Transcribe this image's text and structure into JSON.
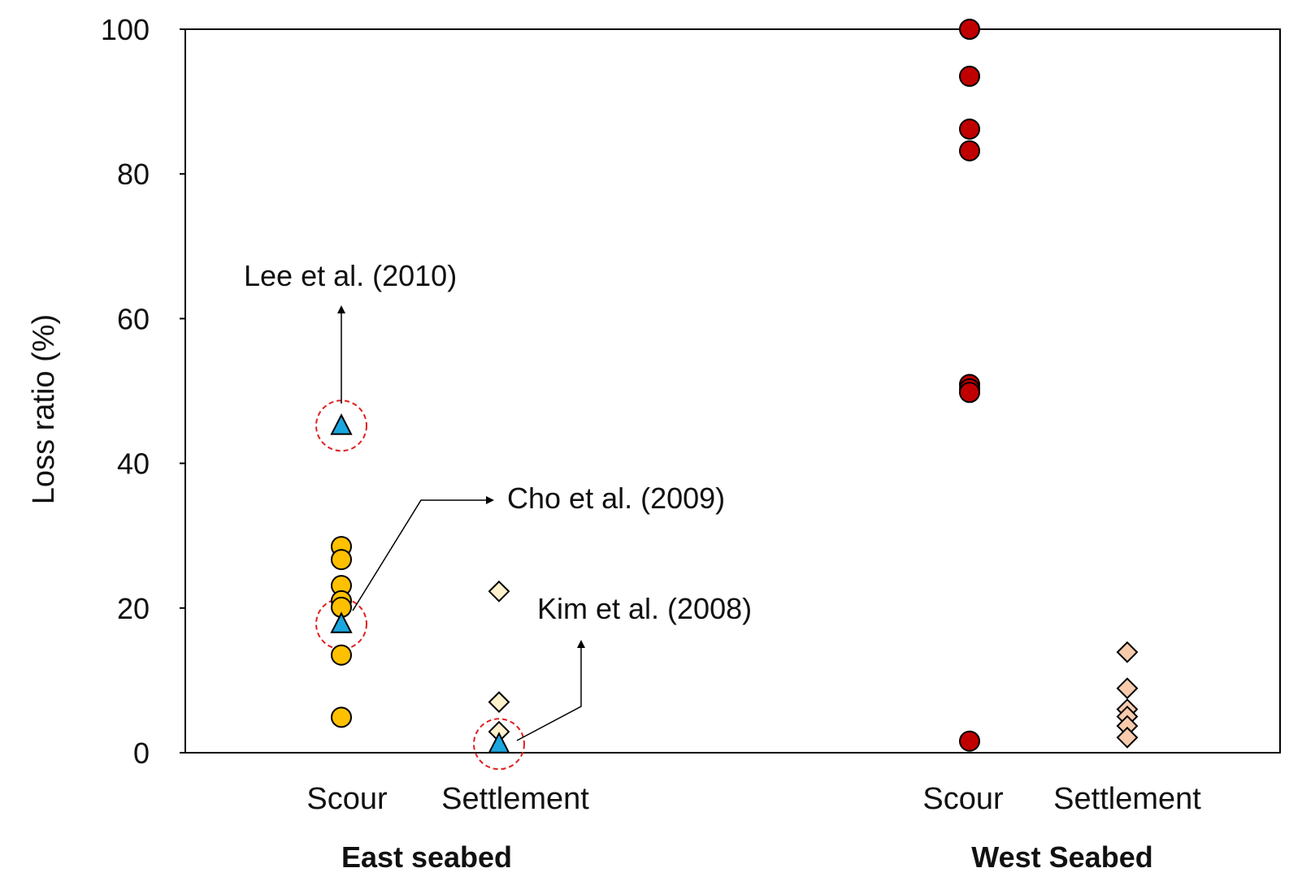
{
  "chart_data": {
    "type": "scatter",
    "ylabel": "Loss ratio (%)",
    "ylim": [
      0,
      100
    ],
    "yticks": [
      0,
      20,
      40,
      60,
      80,
      100
    ],
    "grid": false,
    "groups": [
      {
        "label": "East seabed",
        "categories": [
          "Scour",
          "Settlement"
        ]
      },
      {
        "label": "West Seabed",
        "categories": [
          "Scour",
          "Settlement"
        ]
      }
    ],
    "series": [
      {
        "group": 0,
        "category": 0,
        "marker": "circle",
        "color": "#FFC000",
        "values": [
          28.5,
          26.7,
          23.1,
          21.0,
          20.1,
          13.5,
          4.9
        ]
      },
      {
        "group": 0,
        "category": 0,
        "marker": "triangle",
        "color": "#1AA7E0",
        "values": [
          45.2,
          17.8
        ]
      },
      {
        "group": 0,
        "category": 1,
        "marker": "diamond",
        "color": "#FFF2CC",
        "values": [
          22.3,
          7.0,
          2.9
        ]
      },
      {
        "group": 0,
        "category": 1,
        "marker": "triangle",
        "color": "#1AA7E0",
        "values": [
          1.2
        ]
      },
      {
        "group": 1,
        "category": 0,
        "marker": "circle",
        "color": "#C00000",
        "values": [
          100.0,
          93.5,
          86.2,
          83.2,
          50.9,
          50.3,
          49.8,
          1.6
        ]
      },
      {
        "group": 1,
        "category": 1,
        "marker": "diamond",
        "color": "#F8CBAD",
        "values": [
          13.9,
          8.9,
          6.0,
          5.0,
          3.7,
          2.1
        ]
      }
    ],
    "annotations": [
      {
        "text": "Lee et al. (2010)",
        "group": 0,
        "category": 0,
        "value": 45.2
      },
      {
        "text": "Cho et al. (2009)",
        "group": 0,
        "category": 0,
        "value": 17.8
      },
      {
        "text": "Kim et al. (2008)",
        "group": 0,
        "category": 1,
        "value": 1.2
      }
    ],
    "highlight_color": "#E02020"
  }
}
